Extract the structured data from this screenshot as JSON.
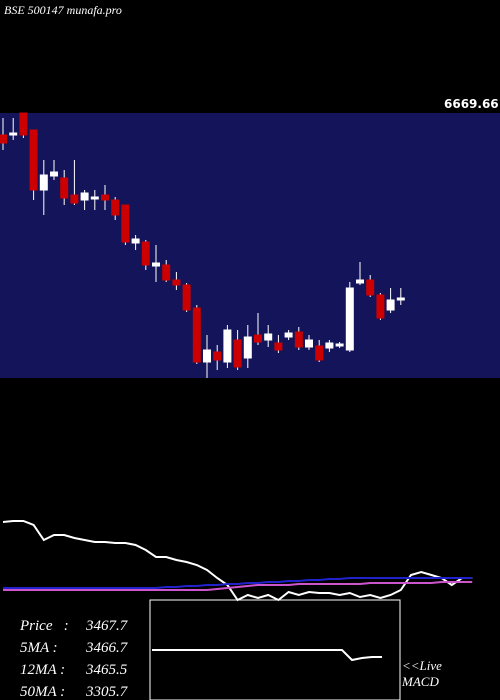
{
  "chart_data": {
    "type": "candlestick",
    "title": "BSE 500147 munafa.pro",
    "price_label": "6669.66",
    "ylim": [
      2690,
      5340
    ],
    "categories": [
      null,
      null,
      null,
      null,
      null,
      null,
      null,
      null,
      null,
      null,
      null,
      null,
      null,
      null,
      null,
      null,
      null,
      null,
      null,
      null,
      null,
      null,
      null,
      null,
      null,
      null,
      null,
      null,
      null,
      null,
      null,
      null,
      null,
      null,
      null,
      null,
      null,
      null,
      null,
      null
    ],
    "open": [
      5120,
      5120,
      5340,
      5170,
      4570,
      4710,
      4690,
      4520,
      4470,
      4480,
      4520,
      4470,
      4420,
      4040,
      4050,
      3810,
      3820,
      3670,
      3620,
      3390,
      2850,
      2950,
      2850,
      3070,
      2890,
      3120,
      3070,
      3040,
      3100,
      3150,
      3000,
      3010,
      2990,
      3010,
      2970,
      3640,
      3670,
      3520,
      3370,
      3470
    ],
    "high": [
      5290,
      5290,
      5340,
      5170,
      4870,
      4870,
      4770,
      4870,
      4570,
      4570,
      4620,
      4500,
      4420,
      4120,
      4070,
      4020,
      3870,
      3750,
      3640,
      3420,
      3120,
      3020,
      3220,
      3170,
      3220,
      3340,
      3220,
      3120,
      3170,
      3200,
      3120,
      3070,
      3070,
      3050,
      3650,
      3850,
      3720,
      3540,
      3590,
      3590
    ],
    "low": [
      4970,
      5070,
      5090,
      4470,
      4320,
      4670,
      4420,
      4420,
      4370,
      4370,
      4370,
      4270,
      4020,
      3970,
      3770,
      3650,
      3650,
      3570,
      3350,
      2830,
      2690,
      2770,
      2790,
      2770,
      2790,
      3020,
      3000,
      2940,
      3070,
      2970,
      2970,
      2850,
      2950,
      2990,
      2950,
      3620,
      3500,
      3270,
      3340,
      3420
    ],
    "close": [
      5040,
      5140,
      5120,
      4570,
      4720,
      4750,
      4490,
      4440,
      4540,
      4500,
      4470,
      4320,
      4050,
      4080,
      3820,
      3840,
      3670,
      3620,
      3370,
      2850,
      2970,
      2870,
      3170,
      2800,
      3100,
      3050,
      3130,
      2970,
      3140,
      3000,
      3070,
      2870,
      3040,
      3030,
      3590,
      3670,
      3520,
      3290,
      3470,
      3490
    ],
    "up_color": "#ffffff",
    "down_color": "#cc0000",
    "background": "#14145a",
    "lower_panel": {
      "ylim": [
        0,
        100
      ],
      "series": [
        {
          "color": "#ffffff",
          "values": [
            78,
            79,
            79,
            75,
            60,
            65,
            65,
            62,
            60,
            58,
            58,
            57,
            57,
            55,
            50,
            43,
            43,
            40,
            38,
            35,
            30,
            22,
            15,
            0,
            5,
            2,
            5,
            0,
            8,
            5,
            8,
            7,
            7,
            5,
            7,
            3,
            5,
            2,
            5,
            10,
            25,
            28,
            25,
            22,
            15,
            22,
            22
          ]
        },
        {
          "color": "#2222cc",
          "values": [
            12,
            12,
            12,
            12,
            12,
            12,
            12,
            12,
            12,
            12,
            12,
            12,
            12,
            12,
            12,
            12,
            13,
            13,
            14,
            14,
            15,
            15,
            16,
            16,
            17,
            17,
            18,
            18,
            19,
            19,
            20,
            20,
            21,
            21,
            22,
            22,
            22,
            22,
            22,
            22,
            22,
            22,
            22,
            22,
            22,
            22,
            22
          ]
        },
        {
          "color": "#cc55cc",
          "values": [
            10,
            10,
            10,
            10,
            10,
            10,
            10,
            10,
            10,
            10,
            10,
            10,
            10,
            10,
            10,
            10,
            10,
            10,
            10,
            10,
            10,
            11,
            12,
            13,
            14,
            15,
            15,
            15,
            15,
            16,
            16,
            16,
            16,
            16,
            16,
            16,
            17,
            17,
            17,
            17,
            17,
            17,
            17,
            18,
            18,
            18,
            18
          ]
        }
      ]
    },
    "macd_panel": {
      "ylim": [
        0,
        100
      ],
      "color": "#ffffff",
      "values": [
        50,
        50,
        50,
        50,
        50,
        50,
        50,
        50,
        50,
        50,
        50,
        50,
        50,
        50,
        50,
        50,
        50,
        50,
        50,
        50,
        40,
        42,
        43,
        43
      ]
    },
    "stats": [
      {
        "label": "Price   :",
        "value": 3467.7
      },
      {
        "label": "5MA :",
        "value": 3466.7
      },
      {
        "label": "12MA :",
        "value": 3465.5
      },
      {
        "label": "50MA :",
        "value": 3305.7
      }
    ],
    "live_label": "<<Live",
    "macd_label": "MACD"
  }
}
